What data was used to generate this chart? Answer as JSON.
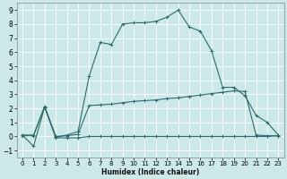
{
  "xlabel": "Humidex (Indice chaleur)",
  "background_color": "#cce8e8",
  "grid_color": "#ffffff",
  "line_color": "#2d6b6b",
  "xlim": [
    -0.5,
    23.5
  ],
  "ylim": [
    -1.5,
    9.5
  ],
  "xticks": [
    0,
    1,
    2,
    3,
    4,
    5,
    6,
    7,
    8,
    9,
    10,
    11,
    12,
    13,
    14,
    15,
    16,
    17,
    18,
    19,
    20,
    21,
    22,
    23
  ],
  "yticks": [
    -1,
    0,
    1,
    2,
    3,
    4,
    5,
    6,
    7,
    8,
    9
  ],
  "line1_x": [
    0,
    1,
    2,
    3,
    4,
    5,
    6,
    7,
    8,
    9,
    10,
    11,
    12,
    13,
    14,
    15,
    16,
    17,
    18,
    19,
    20,
    21,
    22,
    23
  ],
  "line1_y": [
    0.1,
    -0.7,
    2.1,
    -0.05,
    0.1,
    0.35,
    4.3,
    6.7,
    6.55,
    8.0,
    8.1,
    8.1,
    8.2,
    8.5,
    9.0,
    7.8,
    7.5,
    6.1,
    3.5,
    3.5,
    2.9,
    1.5,
    1.0,
    0.1
  ],
  "line2_x": [
    0,
    1,
    2,
    3,
    4,
    5,
    6,
    7,
    8,
    9,
    10,
    11,
    12,
    13,
    14,
    15,
    16,
    17,
    18,
    19,
    20,
    21,
    22,
    23
  ],
  "line2_y": [
    0.1,
    0.1,
    2.15,
    0.0,
    0.05,
    0.15,
    2.2,
    2.25,
    2.3,
    2.4,
    2.5,
    2.55,
    2.6,
    2.7,
    2.75,
    2.85,
    2.95,
    3.05,
    3.15,
    3.25,
    3.2,
    0.1,
    0.05,
    0.05
  ],
  "line3_x": [
    0,
    1,
    2,
    3,
    4,
    5,
    6,
    7,
    8,
    9,
    10,
    11,
    12,
    13,
    14,
    15,
    16,
    17,
    18,
    19,
    20,
    21,
    22,
    23
  ],
  "line3_y": [
    0.05,
    0.05,
    2.1,
    -0.1,
    -0.1,
    -0.1,
    0.0,
    0.0,
    0.0,
    0.0,
    0.0,
    0.0,
    0.0,
    0.0,
    0.0,
    0.0,
    0.0,
    0.0,
    0.0,
    0.0,
    0.0,
    0.0,
    0.0,
    0.05
  ]
}
